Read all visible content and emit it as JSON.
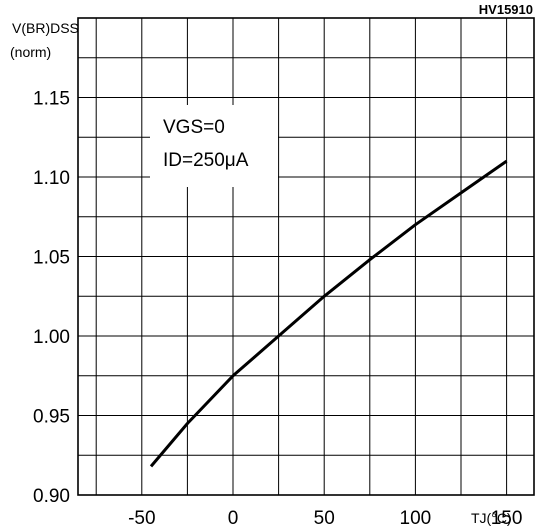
{
  "figure_id": "HV15910",
  "chart_data": {
    "type": "line",
    "ylabel_line1": "V(BR)DSS",
    "ylabel_line2": "(norm)",
    "xlabel": "TJ(°C)",
    "xlim": [
      -85,
      165
    ],
    "ylim": [
      0.9,
      1.2
    ],
    "x_ticks": [
      "-50",
      "0",
      "50",
      "100",
      "150"
    ],
    "y_ticks": [
      "0.90",
      "0.95",
      "1.00",
      "1.05",
      "1.10",
      "1.15"
    ],
    "x_grid": [
      -75,
      -50,
      -25,
      0,
      25,
      50,
      75,
      100,
      125,
      150
    ],
    "y_grid": [
      0.925,
      0.95,
      0.975,
      1.0,
      1.025,
      1.05,
      1.075,
      1.1,
      1.125,
      1.15,
      1.175
    ],
    "grid": true,
    "annotation": {
      "line1": "VGS=0",
      "line2": "ID=250μA"
    },
    "series": [
      {
        "x": [
          -45,
          -25,
          0,
          25,
          50,
          75,
          100,
          125,
          150
        ],
        "y": [
          0.918,
          0.945,
          0.975,
          1.0,
          1.025,
          1.048,
          1.07,
          1.09,
          1.11
        ]
      }
    ]
  }
}
